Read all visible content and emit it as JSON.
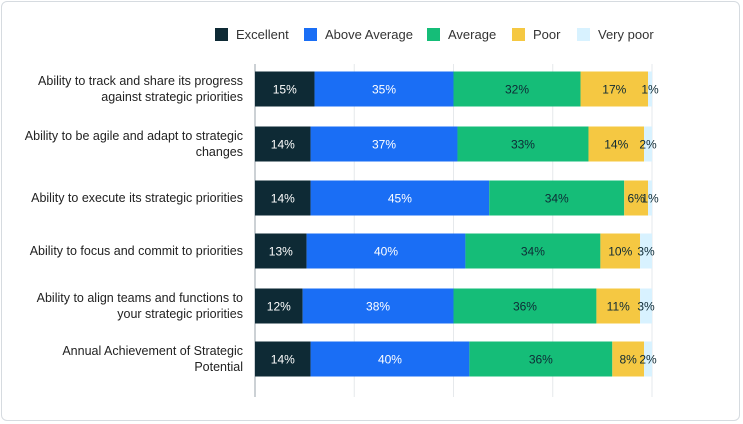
{
  "chart_data": {
    "type": "bar",
    "orientation": "horizontal",
    "stacked": true,
    "title": "",
    "xlabel": "",
    "ylabel": "",
    "xlim": [
      0,
      100
    ],
    "legend_position": "top-right",
    "grid": true,
    "categories": [
      "Ability to track and share its progress against strategic priorities",
      "Ability to be agile and adapt to strategic changes",
      "Ability to execute its strategic priorities",
      "Ability to focus and commit to priorities",
      "Ability to align teams and functions to your strategic priorities",
      "Annual Achievement of Strategic Potential"
    ],
    "series": [
      {
        "name": "Excellent",
        "color": "#0e2a35",
        "label_color": "#ffffff",
        "values": [
          15,
          14,
          14,
          13,
          12,
          14
        ],
        "labels": [
          "15%",
          "14%",
          "14%",
          "13%",
          "12%",
          "14%"
        ]
      },
      {
        "name": "Above Average",
        "color": "#1a6ef5",
        "label_color": "#ffffff",
        "values": [
          35,
          37,
          45,
          40,
          38,
          40
        ],
        "labels": [
          "35%",
          "37%",
          "45%",
          "40%",
          "38%",
          "40%"
        ]
      },
      {
        "name": "Average",
        "color": "#15bd78",
        "label_color": "#0e2a35",
        "values": [
          32,
          33,
          34,
          34,
          36,
          36
        ],
        "labels": [
          "32%",
          "33%",
          "34%",
          "34%",
          "36%",
          "36%"
        ]
      },
      {
        "name": "Poor",
        "color": "#f5c842",
        "label_color": "#0e2a35",
        "values": [
          17,
          14,
          6,
          10,
          11,
          8
        ],
        "labels": [
          "17%",
          "14%",
          "6%",
          "10%",
          "11%",
          "8%"
        ]
      },
      {
        "name": "Very poor",
        "color": "#d8f2ff",
        "label_color": "#0e2a35",
        "values": [
          1,
          2,
          1,
          3,
          3,
          2
        ],
        "labels": [
          "1%",
          "2%",
          "1%",
          "3%",
          "3%",
          "2%"
        ]
      }
    ]
  }
}
